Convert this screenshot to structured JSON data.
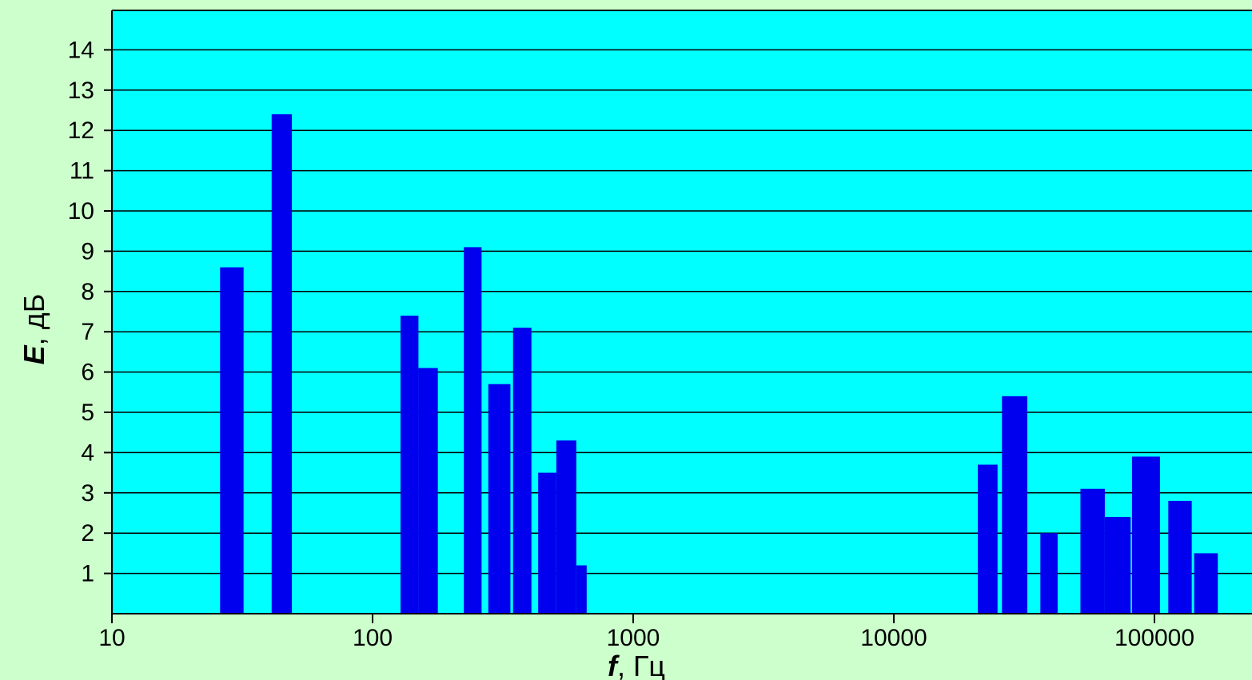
{
  "chart_data": {
    "type": "bar",
    "xscale": "log",
    "xlim": [
      10,
      200000
    ],
    "ylim": [
      0,
      15
    ],
    "grid": true,
    "colors": {
      "page_background": "#ccffcc",
      "plot_background": "#00ffff",
      "bar": "#0000ee",
      "gridline": "#000000"
    },
    "xlabel_var": "f",
    "xlabel_unit": ", Гц",
    "ylabel_var": "E",
    "ylabel_unit": ", дБ",
    "xticks": [
      {
        "value": 10,
        "label": "10"
      },
      {
        "value": 100,
        "label": "100"
      },
      {
        "value": 1000,
        "label": "1000"
      },
      {
        "value": 10000,
        "label": "10000"
      },
      {
        "value": 100000,
        "label": "100000"
      }
    ],
    "yticks": [
      {
        "value": 1,
        "label": "1"
      },
      {
        "value": 2,
        "label": "2"
      },
      {
        "value": 3,
        "label": "3"
      },
      {
        "value": 4,
        "label": "4"
      },
      {
        "value": 5,
        "label": "5"
      },
      {
        "value": 6,
        "label": "6"
      },
      {
        "value": 7,
        "label": "7"
      },
      {
        "value": 8,
        "label": "8"
      },
      {
        "value": 9,
        "label": "9"
      },
      {
        "value": 10,
        "label": "10"
      },
      {
        "value": 11,
        "label": "11"
      },
      {
        "value": 12,
        "label": "12"
      },
      {
        "value": 13,
        "label": "13"
      },
      {
        "value": 14,
        "label": "14"
      }
    ],
    "bars": [
      {
        "x_from": 26,
        "x_to": 32,
        "value": 8.6
      },
      {
        "x_from": 41,
        "x_to": 49,
        "value": 12.4
      },
      {
        "x_from": 128,
        "x_to": 150,
        "value": 7.4
      },
      {
        "x_from": 150,
        "x_to": 178,
        "value": 6.1
      },
      {
        "x_from": 224,
        "x_to": 262,
        "value": 9.1
      },
      {
        "x_from": 278,
        "x_to": 338,
        "value": 5.7
      },
      {
        "x_from": 346,
        "x_to": 407,
        "value": 7.1
      },
      {
        "x_from": 432,
        "x_to": 507,
        "value": 3.5
      },
      {
        "x_from": 507,
        "x_to": 605,
        "value": 4.3
      },
      {
        "x_from": 605,
        "x_to": 663,
        "value": 1.2
      },
      {
        "x_from": 21000,
        "x_to": 25000,
        "value": 3.7
      },
      {
        "x_from": 26000,
        "x_to": 32500,
        "value": 5.4
      },
      {
        "x_from": 36500,
        "x_to": 42500,
        "value": 2.0
      },
      {
        "x_from": 52000,
        "x_to": 64500,
        "value": 3.1
      },
      {
        "x_from": 64500,
        "x_to": 81000,
        "value": 2.4
      },
      {
        "x_from": 82000,
        "x_to": 105000,
        "value": 3.9
      },
      {
        "x_from": 113000,
        "x_to": 139000,
        "value": 2.8
      },
      {
        "x_from": 142000,
        "x_to": 175000,
        "value": 1.5
      }
    ]
  }
}
